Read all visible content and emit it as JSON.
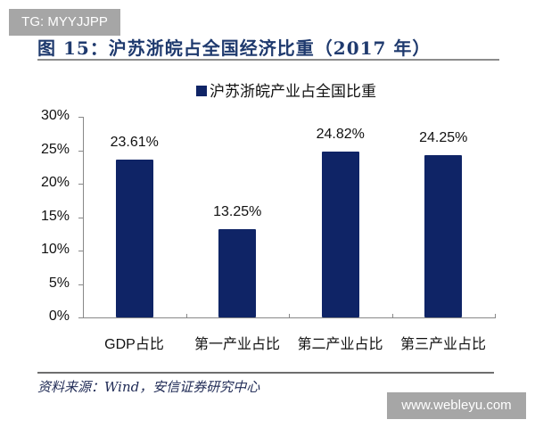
{
  "watermarks": {
    "top_left": "TG: MYYJJPP",
    "bottom_right": "www.webleyu.com"
  },
  "figure": {
    "title": "图 15：沪苏浙皖占全国经济比重（2017 年）",
    "source": "资料来源：Wind，安信证券研究中心"
  },
  "colors": {
    "bar": "#0f2466",
    "title": "#1f3a6e",
    "axis": "#888888"
  },
  "chart_data": {
    "type": "bar",
    "title": "图 15：沪苏浙皖占全国经济比重（2017 年）",
    "xlabel": "",
    "ylabel": "",
    "categories": [
      "GDP占比",
      "第一产业占比",
      "第二产业占比",
      "第三产业占比"
    ],
    "series": [
      {
        "name": "沪苏浙皖产业占全国比重",
        "values": [
          23.61,
          13.25,
          24.82,
          24.25
        ]
      }
    ],
    "data_labels": [
      "23.61%",
      "13.25%",
      "24.82%",
      "24.25%"
    ],
    "yticks": [
      "0%",
      "5%",
      "10%",
      "15%",
      "20%",
      "25%",
      "30%"
    ],
    "ylim": [
      0,
      30
    ],
    "grid": false,
    "legend_position": "top"
  }
}
